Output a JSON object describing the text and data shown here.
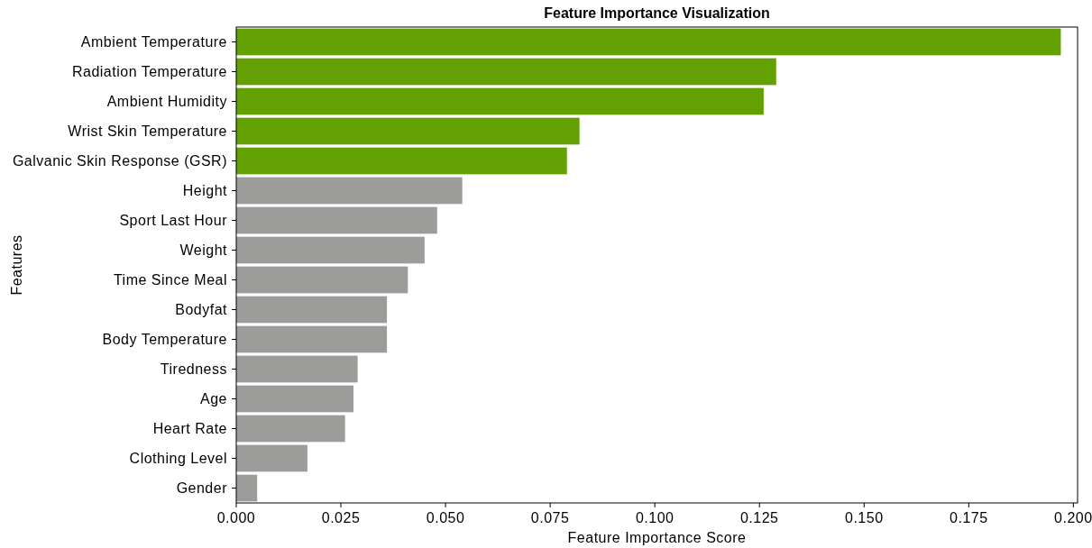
{
  "chart_data": {
    "type": "bar",
    "orientation": "horizontal",
    "title": "Feature Importance Visualization",
    "xlabel": "Feature Importance Score",
    "ylabel": "Features",
    "categories": [
      "Ambient Temperature",
      "Radiation Temperature",
      "Ambient Humidity",
      "Wrist Skin Temperature",
      "Galvanic Skin Response (GSR)",
      "Height",
      "Sport Last Hour",
      "Weight",
      "Time Since Meal",
      "Bodyfat",
      "Body Temperature",
      "Tiredness",
      "Age",
      "Heart Rate",
      "Clothing Level",
      "Gender"
    ],
    "values": [
      0.197,
      0.129,
      0.126,
      0.082,
      0.079,
      0.054,
      0.048,
      0.045,
      0.041,
      0.036,
      0.036,
      0.029,
      0.028,
      0.026,
      0.017,
      0.005
    ],
    "colors": [
      "#63a002",
      "#63a002",
      "#63a002",
      "#63a002",
      "#63a002",
      "#9c9d9b",
      "#9c9d9b",
      "#9c9d9b",
      "#9c9d9b",
      "#9c9d9b",
      "#9c9d9b",
      "#9c9d9b",
      "#9c9d9b",
      "#9c9d9b",
      "#9c9d9b",
      "#9c9d9b"
    ],
    "xlim": [
      0,
      0.201
    ],
    "xticks": [
      {
        "value": 0,
        "label": "0.000"
      },
      {
        "value": 0.025,
        "label": "0.025"
      },
      {
        "value": 0.05,
        "label": "0.050"
      },
      {
        "value": 0.075,
        "label": "0.075"
      },
      {
        "value": 0.1,
        "label": "0.100"
      },
      {
        "value": 0.125,
        "label": "0.125"
      },
      {
        "value": 0.15,
        "label": "0.150"
      },
      {
        "value": 0.175,
        "label": "0.175"
      },
      {
        "value": 0.2,
        "label": "0.200"
      }
    ]
  }
}
